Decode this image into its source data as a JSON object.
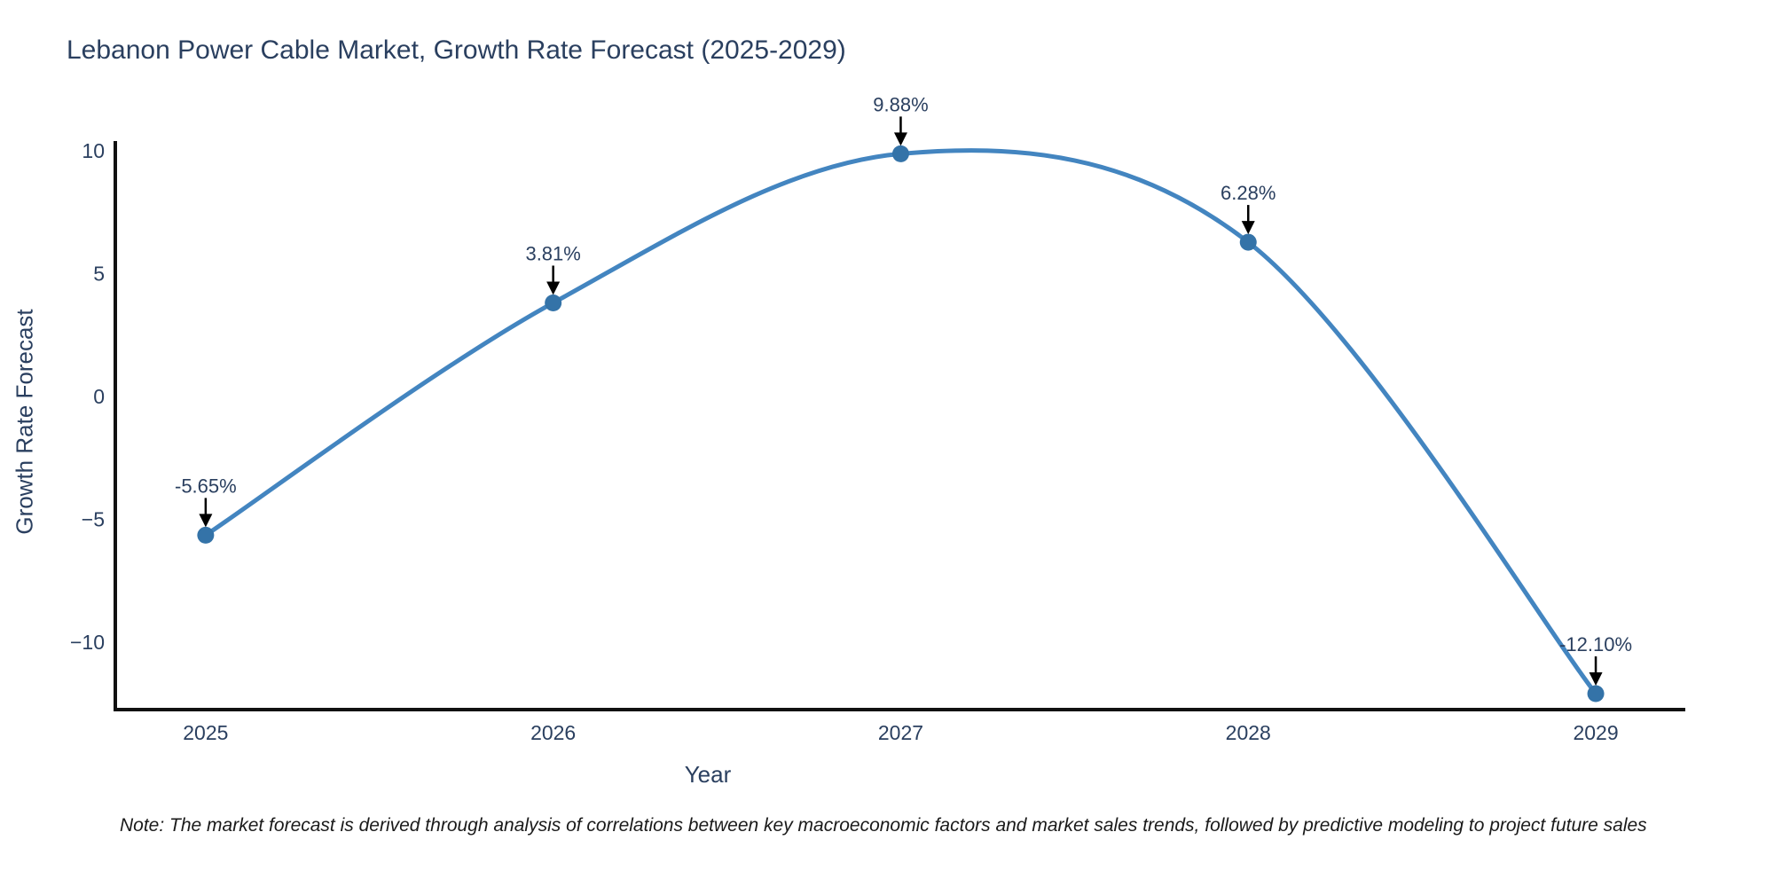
{
  "title": "Lebanon Power Cable Market, Growth Rate Forecast (2025-2029)",
  "note": "Note: The market forecast is derived through analysis of correlations between key macroeconomic factors and market sales trends, followed by predictive modeling to project future sales",
  "chart_data": {
    "type": "line",
    "title": "Lebanon Power Cable Market, Growth Rate Forecast (2025-2029)",
    "xlabel": "Year",
    "ylabel": "Growth Rate Forecast",
    "x": [
      2025,
      2026,
      2027,
      2028,
      2029
    ],
    "series": [
      {
        "name": "Growth Rate Forecast",
        "values": [
          -5.65,
          3.81,
          9.88,
          6.28,
          -12.1
        ]
      }
    ],
    "point_labels": [
      "-5.65%",
      "3.81%",
      "9.88%",
      "6.28%",
      "-12.10%"
    ],
    "yticks": [
      10,
      5,
      0,
      -5,
      -10
    ],
    "xticks": [
      2025,
      2026,
      2027,
      2028,
      2029
    ],
    "xlim": [
      2024.74,
      2029.25
    ],
    "ylim": [
      -12.75,
      10.4
    ],
    "line_shape": "spline",
    "grid": false,
    "legend": "none",
    "colors": {
      "line": "#4385c0",
      "marker": "#3473a8",
      "axis_line": "#111111",
      "tick_text": "#2a3f5f",
      "annotation_text": "#2a3f5f",
      "arrow": "#000000",
      "background": "#ffffff"
    }
  }
}
